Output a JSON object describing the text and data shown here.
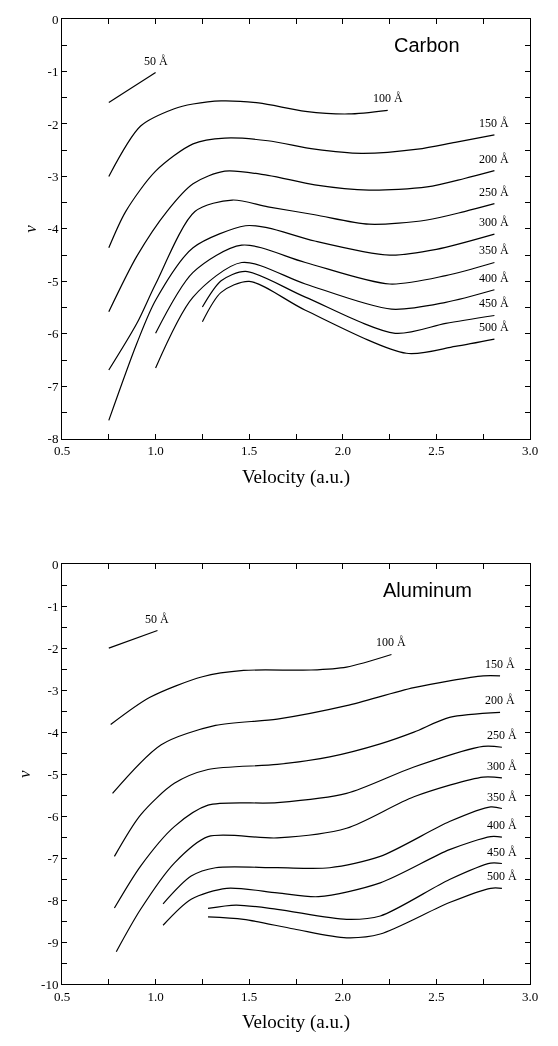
{
  "chart_data": [
    {
      "type": "line",
      "legend": "right",
      "title": "Carbon",
      "xlabel": "Velocity (a.u.)",
      "ylabel": "ν",
      "xlim": [
        0.5,
        3.0
      ],
      "ylim": [
        -8,
        0
      ],
      "xticks": [
        {
          "value": 0.5,
          "label": "0.5"
        },
        {
          "value": 0.75,
          "label": null
        },
        {
          "value": 1.0,
          "label": "1.0"
        },
        {
          "value": 1.25,
          "label": null
        },
        {
          "value": 1.5,
          "label": "1.5"
        },
        {
          "value": 1.75,
          "label": null
        },
        {
          "value": 2.0,
          "label": "2.0"
        },
        {
          "value": 2.25,
          "label": null
        },
        {
          "value": 2.5,
          "label": "2.5"
        },
        {
          "value": 2.75,
          "label": null
        },
        {
          "value": 3.0,
          "label": "3.0"
        }
      ],
      "yticks": [
        0,
        {
          "value": -0.5,
          "label": null
        },
        -1,
        {
          "value": -1.5,
          "label": null
        },
        -2,
        {
          "value": -2.5,
          "label": null
        },
        -3,
        {
          "value": -3.5,
          "label": null
        },
        -4,
        {
          "value": -4.5,
          "label": null
        },
        -5,
        {
          "value": -5.5,
          "label": null
        },
        -6,
        {
          "value": -6.5,
          "label": null
        },
        -7,
        {
          "value": -7.5,
          "label": null
        },
        -8
      ],
      "series": [
        {
          "name": "50 Å",
          "color": "#000000",
          "x": [
            0.75,
            1.0
          ],
          "values": [
            -1.59,
            -1.02
          ]
        },
        {
          "name": "100 Å",
          "color": "#000000",
          "x": [
            0.75,
            0.92,
            1.1,
            1.2,
            1.35,
            1.55,
            1.8,
            2.03,
            2.24
          ],
          "values": [
            -3.0,
            -2.04,
            -1.71,
            -1.62,
            -1.56,
            -1.6,
            -1.76,
            -1.81,
            -1.74
          ]
        },
        {
          "name": "150 Å",
          "color": "#000000",
          "x": [
            0.75,
            0.84,
            1.0,
            1.2,
            1.37,
            1.6,
            1.85,
            2.1,
            2.4,
            2.6,
            2.81
          ],
          "values": [
            -4.36,
            -3.67,
            -2.9,
            -2.38,
            -2.27,
            -2.32,
            -2.48,
            -2.56,
            -2.48,
            -2.35,
            -2.21
          ]
        },
        {
          "name": "200 Å",
          "color": "#000000",
          "x": [
            0.75,
            0.9,
            1.06,
            1.2,
            1.37,
            1.6,
            1.85,
            2.14,
            2.45,
            2.65,
            2.81
          ],
          "values": [
            -5.58,
            -4.52,
            -3.67,
            -3.14,
            -2.9,
            -2.98,
            -3.16,
            -3.26,
            -3.2,
            -3.04,
            -2.89
          ]
        },
        {
          "name": "250 Å",
          "color": "#000000",
          "x": [
            0.75,
            0.9,
            1.0,
            1.21,
            1.41,
            1.6,
            1.85,
            2.14,
            2.45,
            2.65,
            2.81
          ],
          "values": [
            -6.69,
            -5.8,
            -5.05,
            -3.67,
            -3.45,
            -3.58,
            -3.73,
            -3.91,
            -3.83,
            -3.67,
            -3.52
          ]
        },
        {
          "name": "300 Å",
          "color": "#000000",
          "x": [
            0.75,
            0.9,
            1.0,
            1.2,
            1.48,
            1.6,
            1.85,
            2.25,
            2.5,
            2.81
          ],
          "values": [
            -7.65,
            -6.18,
            -5.36,
            -4.36,
            -3.94,
            -3.98,
            -4.23,
            -4.5,
            -4.39,
            -4.1
          ]
        },
        {
          "name": "350 Å",
          "color": "#000000",
          "x": [
            1.0,
            1.2,
            1.46,
            1.8,
            2.25,
            2.55,
            2.81
          ],
          "values": [
            -5.99,
            -4.83,
            -4.31,
            -4.64,
            -5.05,
            -4.89,
            -4.64
          ]
        },
        {
          "name": "400 Å",
          "color": "#000000",
          "x": [
            1.0,
            1.2,
            1.46,
            1.8,
            2.26,
            2.55,
            2.81
          ],
          "values": [
            -6.65,
            -5.3,
            -4.64,
            -5.05,
            -5.53,
            -5.4,
            -5.16
          ]
        },
        {
          "name": "450 Å",
          "color": "#000000",
          "x": [
            1.25,
            1.35,
            1.48,
            1.8,
            2.28,
            2.55,
            2.81
          ],
          "values": [
            -5.49,
            -4.99,
            -4.81,
            -5.3,
            -5.99,
            -5.8,
            -5.65
          ]
        },
        {
          "name": "500 Å",
          "color": "#000000",
          "x": [
            1.25,
            1.35,
            1.5,
            1.8,
            2.34,
            2.6,
            2.81
          ],
          "values": [
            -5.77,
            -5.21,
            -5.0,
            -5.55,
            -6.37,
            -6.24,
            -6.1
          ]
        }
      ]
    },
    {
      "type": "line",
      "legend": "right",
      "title": "Aluminum",
      "xlabel": "Velocity (a.u.)",
      "ylabel": "ν",
      "xlim": [
        0.5,
        3.0
      ],
      "ylim": [
        -10,
        0
      ],
      "xticks": [
        {
          "value": 0.5,
          "label": "0.5"
        },
        {
          "value": 0.75,
          "label": null
        },
        {
          "value": 1.0,
          "label": "1.0"
        },
        {
          "value": 1.25,
          "label": null
        },
        {
          "value": 1.5,
          "label": "1.5"
        },
        {
          "value": 1.75,
          "label": null
        },
        {
          "value": 2.0,
          "label": "2.0"
        },
        {
          "value": 2.25,
          "label": null
        },
        {
          "value": 2.5,
          "label": "2.5"
        },
        {
          "value": 2.75,
          "label": null
        },
        {
          "value": 3.0,
          "label": "3.0"
        }
      ],
      "yticks": [
        0,
        {
          "value": -0.5,
          "label": null
        },
        -1,
        {
          "value": -1.5,
          "label": null
        },
        -2,
        {
          "value": -2.5,
          "label": null
        },
        -3,
        {
          "value": -3.5,
          "label": null
        },
        -4,
        {
          "value": -4.5,
          "label": null
        },
        -5,
        {
          "value": -5.5,
          "label": null
        },
        -6,
        {
          "value": -6.5,
          "label": null
        },
        -7,
        {
          "value": -7.5,
          "label": null
        },
        -8,
        {
          "value": -8.5,
          "label": null
        },
        -9,
        {
          "value": -9.5,
          "label": null
        },
        -10
      ],
      "series": [
        {
          "name": "50 Å",
          "color": "#000000",
          "x": [
            0.75,
            1.01
          ],
          "values": [
            -2.0,
            -1.58
          ]
        },
        {
          "name": "100 Å",
          "color": "#000000",
          "x": [
            0.76,
            0.97,
            1.25,
            1.47,
            1.83,
            2.02,
            2.26
          ],
          "values": [
            -3.82,
            -3.17,
            -2.68,
            -2.53,
            -2.52,
            -2.45,
            -2.15
          ]
        },
        {
          "name": "150 Å",
          "color": "#000000",
          "x": [
            0.77,
            1.03,
            1.32,
            1.65,
            2.02,
            2.38,
            2.75,
            2.84
          ],
          "values": [
            -5.46,
            -4.3,
            -3.84,
            -3.69,
            -3.37,
            -2.94,
            -2.66,
            -2.66
          ]
        },
        {
          "name": "200 Å",
          "color": "#000000",
          "x": [
            0.78,
            0.92,
            1.1,
            1.28,
            1.65,
            1.93,
            2.2,
            2.38,
            2.57,
            2.84
          ],
          "values": [
            -6.96,
            -5.97,
            -5.22,
            -4.89,
            -4.77,
            -4.59,
            -4.28,
            -4.0,
            -3.65,
            -3.53
          ]
        },
        {
          "name": "250 Å",
          "color": "#000000",
          "x": [
            0.78,
            0.92,
            1.1,
            1.28,
            1.65,
            2.02,
            2.38,
            2.75,
            2.85
          ],
          "values": [
            -8.19,
            -7.19,
            -6.25,
            -5.74,
            -5.68,
            -5.46,
            -4.83,
            -4.34,
            -4.36
          ]
        },
        {
          "name": "300 Å",
          "color": "#000000",
          "x": [
            0.79,
            0.92,
            1.1,
            1.28,
            1.65,
            2.02,
            2.38,
            2.75,
            2.85
          ],
          "values": [
            -9.23,
            -8.22,
            -7.12,
            -6.49,
            -6.52,
            -6.29,
            -5.54,
            -5.07,
            -5.09
          ]
        },
        {
          "name": "350 Å",
          "color": "#000000",
          "x": [
            1.04,
            1.19,
            1.32,
            1.65,
            1.93,
            2.2,
            2.57,
            2.79,
            2.85
          ],
          "values": [
            -8.09,
            -7.43,
            -7.23,
            -7.23,
            -7.23,
            -6.96,
            -6.13,
            -5.78,
            -5.82
          ]
        },
        {
          "name": "400 Å",
          "color": "#000000",
          "x": [
            1.04,
            1.19,
            1.38,
            1.65,
            1.87,
            2.2,
            2.57,
            2.79,
            2.85
          ],
          "values": [
            -8.6,
            -7.98,
            -7.72,
            -7.83,
            -7.92,
            -7.59,
            -6.8,
            -6.49,
            -6.5
          ]
        },
        {
          "name": "450 Å",
          "color": "#000000",
          "x": [
            1.28,
            1.43,
            1.65,
            2.02,
            2.2,
            2.57,
            2.79,
            2.85
          ],
          "values": [
            -8.2,
            -8.12,
            -8.22,
            -8.46,
            -8.38,
            -7.51,
            -7.12,
            -7.13
          ]
        },
        {
          "name": "500 Å",
          "color": "#000000",
          "x": [
            1.28,
            1.47,
            1.74,
            2.02,
            2.2,
            2.57,
            2.79,
            2.85
          ],
          "values": [
            -8.4,
            -8.46,
            -8.69,
            -8.9,
            -8.81,
            -8.06,
            -7.72,
            -7.72
          ]
        }
      ]
    }
  ]
}
